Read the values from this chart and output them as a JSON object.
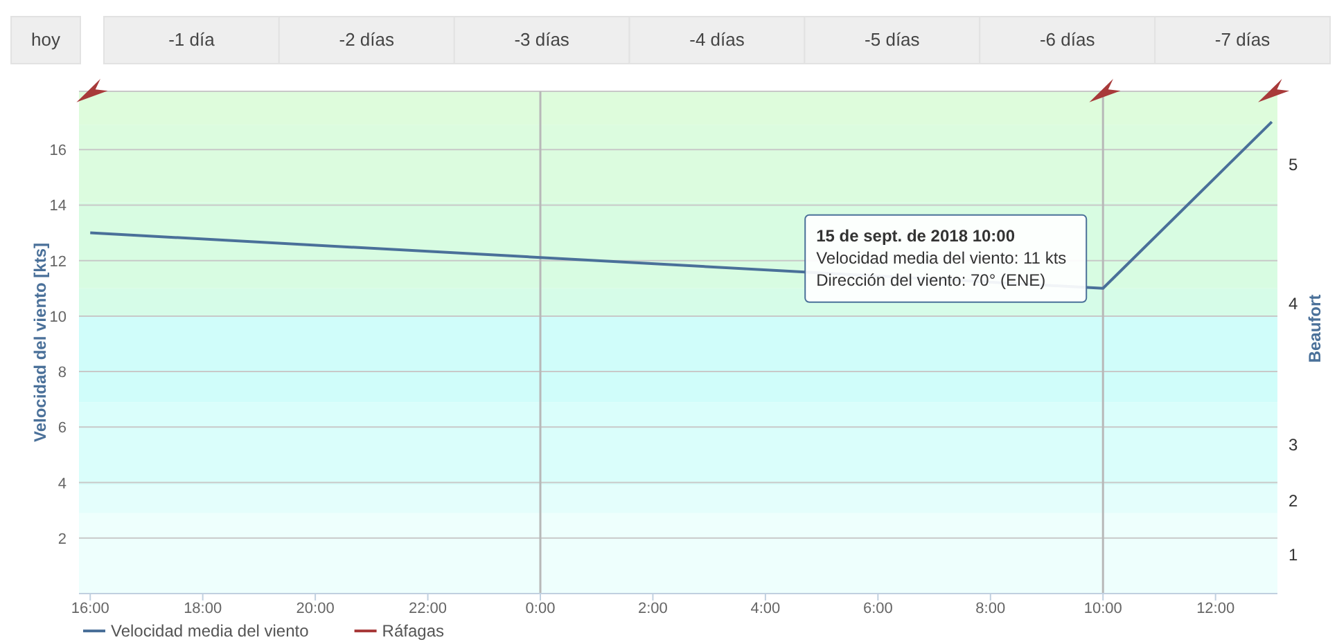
{
  "chart_data": {
    "type": "line",
    "ylabel": "Velocidad del viento [kts]",
    "y2label": "Beaufort",
    "x": [
      "2018-09-14T16:00",
      "2018-09-15T10:00",
      "2018-09-15T13:00"
    ],
    "series": [
      {
        "name": "Velocidad media del viento",
        "color": "#4a7099",
        "values": [
          13,
          11,
          17
        ]
      },
      {
        "name": "Ráfagas",
        "color": "#a83a3a",
        "values": [
          null,
          null,
          null
        ]
      }
    ],
    "xlim": [
      "2018-09-14T15:48",
      "2018-09-15T13:06"
    ],
    "xticks": [
      {
        "value": "2018-09-14T16:00",
        "label": "16:00"
      },
      {
        "value": "2018-09-14T18:00",
        "label": "18:00"
      },
      {
        "value": "2018-09-14T20:00",
        "label": "20:00"
      },
      {
        "value": "2018-09-14T22:00",
        "label": "22:00"
      },
      {
        "value": "2018-09-15T00:00",
        "label": "0:00"
      },
      {
        "value": "2018-09-15T02:00",
        "label": "2:00"
      },
      {
        "value": "2018-09-15T04:00",
        "label": "4:00"
      },
      {
        "value": "2018-09-15T06:00",
        "label": "6:00"
      },
      {
        "value": "2018-09-15T08:00",
        "label": "8:00"
      },
      {
        "value": "2018-09-15T10:00",
        "label": "10:00"
      },
      {
        "value": "2018-09-15T12:00",
        "label": "12:00"
      }
    ],
    "ylim": [
      0,
      18.1
    ],
    "yticks": [
      2,
      4,
      6,
      8,
      10,
      12,
      14,
      16
    ],
    "grid": "y",
    "legend": "bottom left",
    "marker": "none",
    "line_style": "solid",
    "ref_lines": [
      {
        "axis": "x",
        "value": "2018-09-15T00:00",
        "color": "#b8b8b8"
      },
      {
        "axis": "x",
        "value": "2018-09-15T10:00",
        "color": "#b8b8b8"
      }
    ],
    "bands": [
      {
        "axis": "y",
        "from": 0,
        "to": 2.9,
        "label": "1",
        "color": "#eefffd"
      },
      {
        "axis": "y",
        "from": 2.9,
        "to": 3.9,
        "label": "2",
        "color": "#e4fefc"
      },
      {
        "axis": "y",
        "from": 3.9,
        "to": 6.9,
        "label": "3",
        "color": "#dafefb"
      },
      {
        "axis": "y",
        "from": 6.9,
        "to": 10,
        "label": null,
        "color": "#d0fdfa"
      },
      {
        "axis": "y",
        "from": 10,
        "to": 11,
        "label": "4",
        "color": "#d6fce8"
      },
      {
        "axis": "y",
        "from": 11,
        "to": 14.1,
        "label": null,
        "color": "#d8fce2"
      },
      {
        "axis": "y",
        "from": 14.1,
        "to": 16.9,
        "label": "5",
        "color": "#dcfcdf"
      },
      {
        "axis": "y",
        "from": 16.9,
        "to": 18.1,
        "label": null,
        "color": "#defcdc"
      }
    ],
    "annotations": [
      "hoy",
      "-1 día",
      "-2 días",
      "-3 días",
      "-4 días",
      "-5 días",
      "-6 días",
      "-7 días",
      "15 de sept. de 2018 10:00",
      "Velocidad media del viento: 11 kts",
      "Dirección del viento: 70° (ENE)"
    ]
  }
}
